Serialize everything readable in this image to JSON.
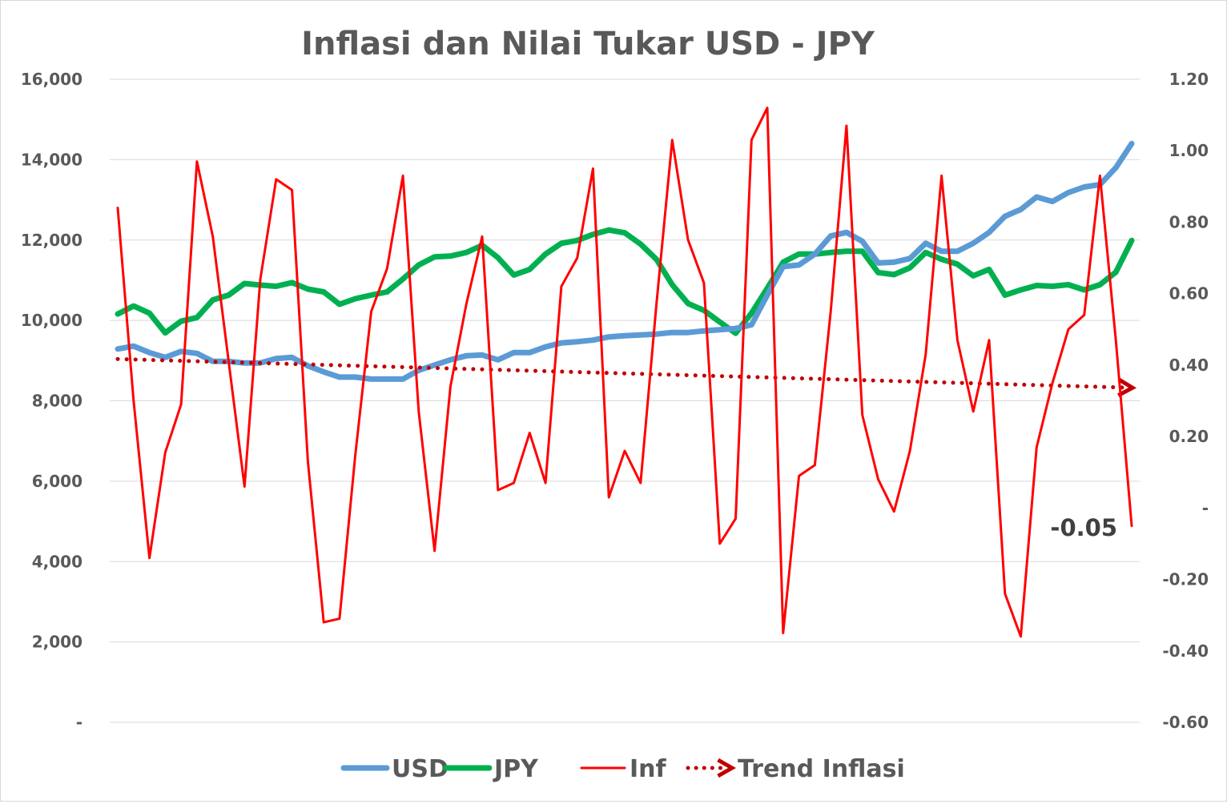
{
  "chart_data": {
    "type": "line",
    "title": "Inflasi dan Nilai Tukar USD - JPY",
    "y_left": {
      "min": 0,
      "max": 16000,
      "ticks": [
        0,
        2000,
        4000,
        6000,
        8000,
        10000,
        12000,
        14000,
        16000
      ],
      "tick_labels": [
        "-",
        "2,000",
        "4,000",
        "6,000",
        "8,000",
        "10,000",
        "12,000",
        "14,000",
        "16,000"
      ]
    },
    "y_right": {
      "min": -0.6,
      "max": 1.2,
      "ticks": [
        -0.6,
        -0.4,
        -0.2,
        0,
        0.2,
        0.4,
        0.6,
        0.8,
        1.0,
        1.2
      ],
      "tick_labels": [
        "-0.60",
        "-0.40",
        "-0.20",
        "-",
        "0.20",
        "0.40",
        "0.60",
        "0.80",
        "1.00",
        "1.20"
      ]
    },
    "grid": true,
    "legend_position": "bottom",
    "colors": {
      "USD": "#5B9BD5",
      "JPY": "#00B050",
      "Inf": "#FF0000",
      "Trend Inflasi": "#C00000"
    },
    "series": [
      {
        "name": "USD",
        "axis": "left",
        "values": [
          9290,
          9360,
          9200,
          9080,
          9230,
          9180,
          8980,
          8980,
          8940,
          8940,
          9050,
          9080,
          8870,
          8720,
          8590,
          8590,
          8540,
          8540,
          8540,
          8760,
          8890,
          9020,
          9120,
          9140,
          9020,
          9200,
          9200,
          9340,
          9440,
          9470,
          9510,
          9590,
          9620,
          9640,
          9660,
          9700,
          9700,
          9740,
          9770,
          9800,
          9890,
          10630,
          11340,
          11380,
          11650,
          12100,
          12190,
          11970,
          11430,
          11450,
          11540,
          11920,
          11720,
          11720,
          11920,
          12190,
          12590,
          12760,
          13070,
          12960,
          13180,
          13320,
          13380,
          13800,
          14400
        ]
      },
      {
        "name": "JPY",
        "axis": "left",
        "values": [
          10160,
          10360,
          10180,
          9690,
          9980,
          10070,
          10510,
          10630,
          10920,
          10880,
          10850,
          10940,
          10780,
          10710,
          10400,
          10540,
          10630,
          10710,
          11030,
          11380,
          11580,
          11600,
          11690,
          11870,
          11560,
          11130,
          11270,
          11650,
          11920,
          11990,
          12140,
          12250,
          12180,
          11900,
          11520,
          10890,
          10420,
          10250,
          9960,
          9680,
          10180,
          10800,
          11450,
          11650,
          11650,
          11690,
          11720,
          11720,
          11190,
          11140,
          11310,
          11690,
          11520,
          11400,
          11110,
          11270,
          10630,
          10760,
          10870,
          10850,
          10890,
          10760,
          10890,
          11200,
          11990
        ]
      },
      {
        "name": "Inf",
        "axis": "right",
        "values": [
          0.84,
          0.3,
          -0.14,
          0.155,
          0.29,
          0.97,
          0.76,
          0.41,
          0.06,
          0.64,
          0.92,
          0.89,
          0.13,
          -0.32,
          -0.31,
          0.15,
          0.55,
          0.67,
          0.93,
          0.27,
          -0.12,
          0.34,
          0.57,
          0.76,
          0.05,
          0.07,
          0.21,
          0.07,
          0.62,
          0.7,
          0.95,
          0.03,
          0.16,
          0.07,
          0.57,
          1.03,
          0.75,
          0.63,
          -0.1,
          -0.03,
          1.03,
          1.12,
          -0.35,
          0.09,
          0.12,
          0.55,
          1.07,
          0.26,
          0.08,
          -0.01,
          0.16,
          0.43,
          0.93,
          0.47,
          0.27,
          0.47,
          -0.24,
          -0.36,
          0.17,
          0.35,
          0.5,
          0.54,
          0.93,
          0.47,
          -0.05
        ]
      },
      {
        "name": "Trend Inflasi",
        "axis": "right",
        "type": "linear-trendline",
        "of": "Inf"
      }
    ],
    "annotations": [
      {
        "series": "Inf",
        "point": "last",
        "text": "-0.05"
      }
    ]
  }
}
